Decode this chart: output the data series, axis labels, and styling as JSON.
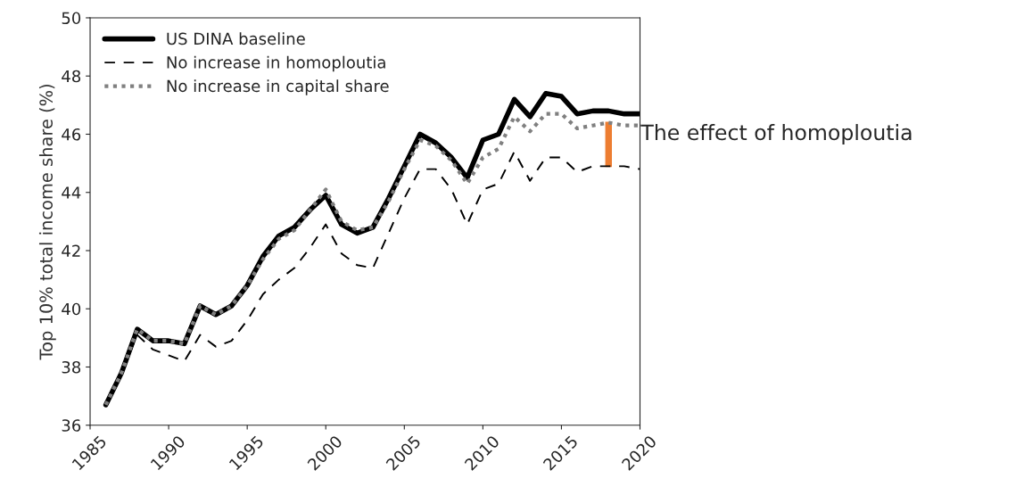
{
  "chart_data": {
    "type": "line",
    "ylabel": "Top 10% total income share (%)",
    "x": [
      1986,
      1987,
      1988,
      1989,
      1990,
      1991,
      1992,
      1993,
      1994,
      1995,
      1996,
      1997,
      1998,
      1999,
      2000,
      2001,
      2002,
      2003,
      2004,
      2005,
      2006,
      2007,
      2008,
      2009,
      2010,
      2011,
      2012,
      2013,
      2014,
      2015,
      2016,
      2017,
      2018,
      2019,
      2020
    ],
    "series": [
      {
        "name": "US DINA baseline",
        "color": "#000000",
        "line_style": "solid",
        "values": [
          36.7,
          37.8,
          39.3,
          38.9,
          38.9,
          38.8,
          40.1,
          39.8,
          40.1,
          40.8,
          41.8,
          42.5,
          42.8,
          43.4,
          43.9,
          42.9,
          42.6,
          42.8,
          43.8,
          44.9,
          46.0,
          45.7,
          45.2,
          44.5,
          45.8,
          46.0,
          47.2,
          46.6,
          47.4,
          47.3,
          46.7,
          46.8,
          46.8,
          46.7,
          46.7
        ]
      },
      {
        "name": "No increase in homoploutia",
        "color": "#000000",
        "line_style": "dashed",
        "values": [
          36.7,
          37.8,
          39.1,
          38.6,
          38.4,
          38.2,
          39.1,
          38.7,
          38.9,
          39.6,
          40.5,
          41.0,
          41.4,
          42.1,
          42.9,
          41.9,
          41.5,
          41.4,
          42.6,
          43.8,
          44.8,
          44.8,
          44.1,
          42.9,
          44.1,
          44.3,
          45.4,
          44.4,
          45.2,
          45.2,
          44.7,
          44.9,
          44.9,
          44.9,
          44.8
        ]
      },
      {
        "name": "No increase in capital share",
        "color": "#808080",
        "line_style": "dotted",
        "values": [
          36.7,
          37.8,
          39.3,
          38.9,
          38.9,
          38.8,
          40.1,
          39.8,
          40.1,
          40.8,
          41.7,
          42.4,
          42.7,
          43.4,
          44.1,
          43.0,
          42.7,
          42.8,
          43.7,
          44.8,
          45.8,
          45.6,
          45.1,
          44.3,
          45.2,
          45.5,
          46.6,
          46.1,
          46.7,
          46.7,
          46.2,
          46.3,
          46.4,
          46.3,
          46.3
        ]
      },
      {
        "type": "bar",
        "color": "#ed7d31",
        "x": [
          2018
        ],
        "base": [
          44.85
        ],
        "values": [
          1.6
        ]
      }
    ],
    "annotations": [
      {
        "text": "The effect of homoploutia",
        "x": 2018,
        "y": 46.0
      }
    ],
    "xlim": [
      1985,
      2020
    ],
    "xticks": [
      1985,
      1990,
      1995,
      2000,
      2005,
      2010,
      2015,
      2020
    ],
    "ylim": [
      36,
      50
    ],
    "yticks": [
      36,
      38,
      40,
      42,
      44,
      46,
      48,
      50
    ],
    "grid": false,
    "legend": "top left"
  }
}
